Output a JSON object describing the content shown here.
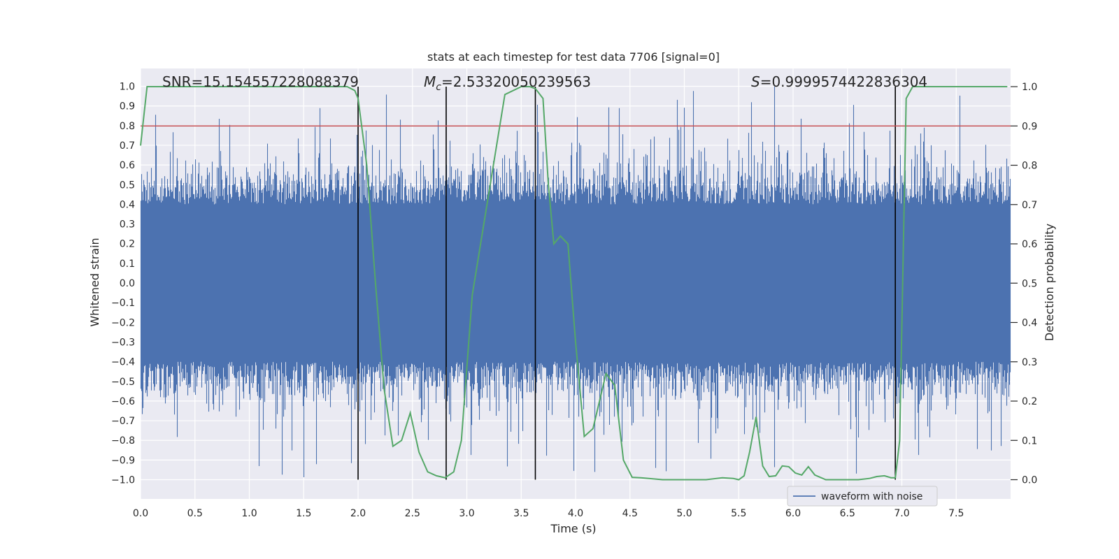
{
  "chart_data": {
    "type": "line",
    "title": "stats at each timestep for test data 7706 [signal=0]",
    "xlabel": "Time (s)",
    "ylabel": "Whitened strain",
    "y2label": "Detection probability",
    "xlim": [
      0.0,
      8.0
    ],
    "ylim": [
      -1.1,
      1.1
    ],
    "y2lim": [
      -0.05,
      1.05
    ],
    "xticks": [
      "0.0",
      "0.5",
      "1.0",
      "1.5",
      "2.0",
      "2.5",
      "3.0",
      "3.5",
      "4.0",
      "4.5",
      "5.0",
      "5.5",
      "6.0",
      "6.5",
      "7.0",
      "7.5"
    ],
    "yticks": [
      "1.0",
      "0.9",
      "0.8",
      "0.7",
      "0.6",
      "0.5",
      "0.4",
      "0.3",
      "0.2",
      "0.1",
      "0.0",
      "−0.1",
      "−0.2",
      "−0.3",
      "−0.4",
      "−0.5",
      "−0.6",
      "−0.7",
      "−0.8",
      "−0.9",
      "−1.0"
    ],
    "y2ticks": [
      "1.0",
      "0.9",
      "0.8",
      "0.7",
      "0.6",
      "0.5",
      "0.4",
      "0.3",
      "0.2",
      "0.1",
      "0.0"
    ],
    "annotations": {
      "snr": "SNR=15.154557228088379",
      "mc_symbol": "M",
      "mc_sub": "c",
      "mc_value": "=2.53320050239563",
      "s_symbol": "S",
      "s_value": "=0.9999574422836304"
    },
    "threshold": {
      "y2": 0.9,
      "color": "#c44e52"
    },
    "event_lines_x": [
      2.0,
      2.81,
      3.63,
      6.94
    ],
    "waveform": {
      "name": "waveform with noise",
      "color": "#4c72b0",
      "typical_envelope": 0.4,
      "max_peak": 1.0,
      "min_trough": -0.99,
      "description_seed": 7706
    },
    "probability": {
      "color": "#55a868",
      "x": [
        0.0,
        0.06,
        0.12,
        1.9,
        1.97,
        2.0,
        2.08,
        2.16,
        2.24,
        2.32,
        2.4,
        2.48,
        2.56,
        2.64,
        2.72,
        2.8,
        2.88,
        2.95,
        3.05,
        3.35,
        3.5,
        3.58,
        3.63,
        3.7,
        3.75,
        3.8,
        3.86,
        3.93,
        4.0,
        4.08,
        4.16,
        4.22,
        4.28,
        4.36,
        4.44,
        4.52,
        4.6,
        4.8,
        5.0,
        5.1,
        5.2,
        5.35,
        5.45,
        5.5,
        5.55,
        5.6,
        5.66,
        5.72,
        5.78,
        5.84,
        5.9,
        5.96,
        6.02,
        6.08,
        6.14,
        6.2,
        6.3,
        6.6,
        6.7,
        6.77,
        6.84,
        6.9,
        6.94,
        6.98,
        7.04,
        7.1,
        7.97
      ],
      "y": [
        0.85,
        1.0,
        1.0,
        1.0,
        0.99,
        0.97,
        0.8,
        0.5,
        0.23,
        0.085,
        0.1,
        0.17,
        0.07,
        0.02,
        0.01,
        0.005,
        0.02,
        0.1,
        0.47,
        0.98,
        1.0,
        1.0,
        0.995,
        0.97,
        0.75,
        0.6,
        0.62,
        0.6,
        0.35,
        0.11,
        0.13,
        0.2,
        0.27,
        0.24,
        0.05,
        0.006,
        0.005,
        0.0,
        0.0,
        0.0,
        0.0,
        0.005,
        0.003,
        0.0,
        0.01,
        0.07,
        0.16,
        0.035,
        0.008,
        0.01,
        0.035,
        0.033,
        0.017,
        0.012,
        0.033,
        0.012,
        0.0,
        0.0,
        0.003,
        0.008,
        0.01,
        0.005,
        0.005,
        0.1,
        0.97,
        1.0,
        1.0
      ]
    },
    "legend": {
      "label": "waveform with noise",
      "position": "bottom-right"
    }
  }
}
